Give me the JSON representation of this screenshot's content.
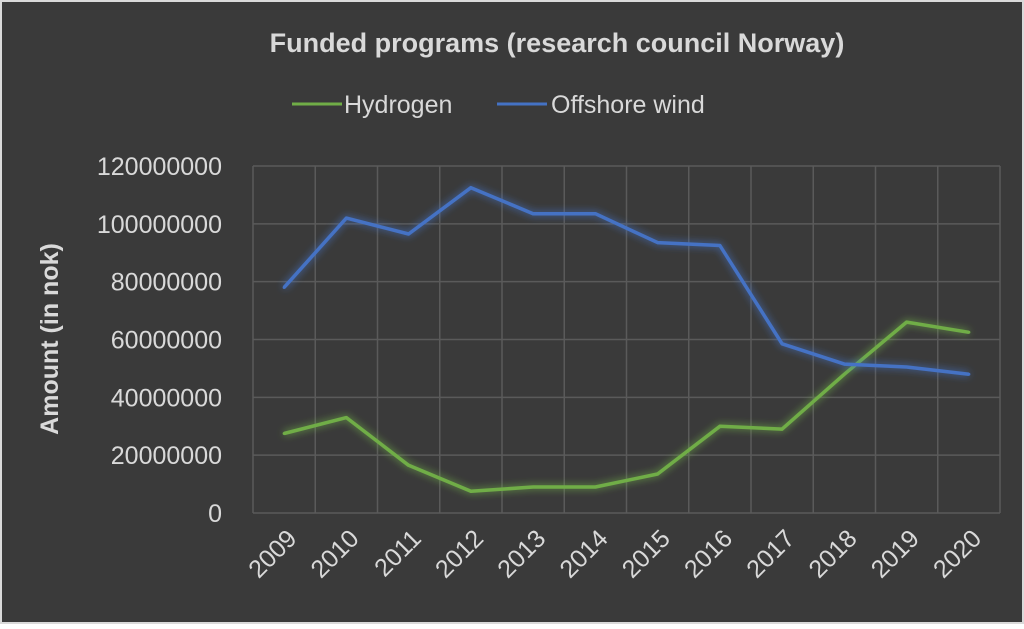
{
  "colors": {
    "background": "#3a3a3a",
    "border": "#d9d9d9",
    "gridline": "#5a5a5a",
    "text": "#d9d9d9",
    "hydrogen": "#70ad47",
    "offshore_wind": "#4472c4"
  },
  "chart_data": {
    "type": "line",
    "title": "Funded  programs (research council Norway)",
    "xlabel": "",
    "ylabel": "Amount (in nok)",
    "ylim": [
      0,
      120000000
    ],
    "y_ticks": [
      0,
      20000000,
      40000000,
      60000000,
      80000000,
      100000000,
      120000000
    ],
    "y_tick_labels": [
      "0",
      "20000000",
      "40000000",
      "60000000",
      "80000000",
      "100000000",
      "120000000"
    ],
    "categories": [
      "2009",
      "2010",
      "2011",
      "2012",
      "2013",
      "2014",
      "2015",
      "2016",
      "2017",
      "2018",
      "2019",
      "2020"
    ],
    "grid": true,
    "legend_position": "top",
    "series": [
      {
        "name": "Hydrogen",
        "color_key": "hydrogen",
        "values": [
          27500000,
          33000000,
          16500000,
          7500000,
          9000000,
          9000000,
          13500000,
          30000000,
          29000000,
          48000000,
          66000000,
          62500000
        ]
      },
      {
        "name": "Offshore wind",
        "color_key": "offshore_wind",
        "values": [
          78000000,
          102000000,
          96500000,
          112500000,
          103500000,
          103500000,
          93500000,
          92500000,
          58500000,
          51500000,
          50500000,
          48000000
        ]
      }
    ]
  }
}
